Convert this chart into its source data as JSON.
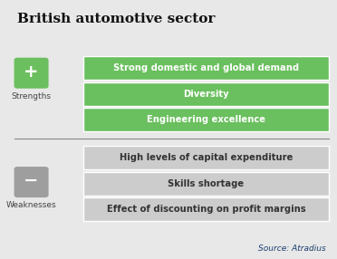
{
  "title": "British automotive sector",
  "background_color": "#e8e8e8",
  "strengths_label": "Strengths",
  "weaknesses_label": "Weaknesses",
  "strengths_color": "#6cbf5e",
  "weaknesses_color": "#9e9e9e",
  "strength_items": [
    "Strong domestic and global demand",
    "Diversity",
    "Engineering excellence"
  ],
  "weakness_items": [
    "High levels of capital expenditure",
    "Skills shortage",
    "Effect of discounting on profit margins"
  ],
  "strength_bar_color": "#6abf5e",
  "weakness_bar_color": "#cccccc",
  "strength_text_color": "#ffffff",
  "weakness_text_color": "#333333",
  "source_text": "Source: Atradius",
  "source_color": "#1a3c6e",
  "divider_color": "#888888"
}
